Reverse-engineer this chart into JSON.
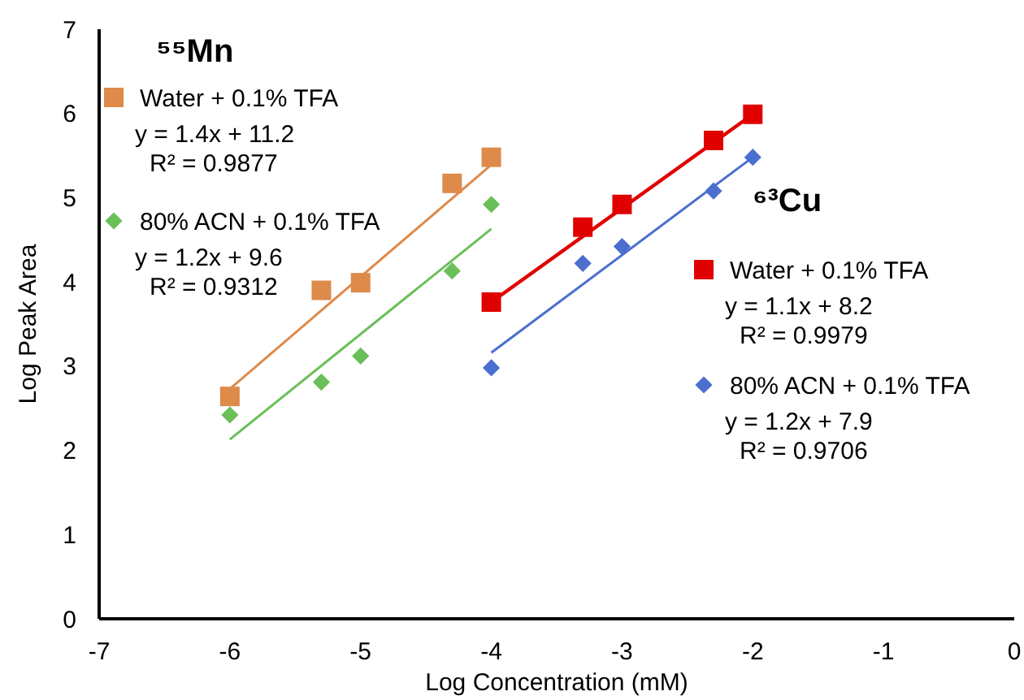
{
  "chart_data": {
    "type": "scatter",
    "xlabel": "Log Concentration (mM)",
    "ylabel": "Log Peak Area",
    "xlim": [
      -7,
      0
    ],
    "ylim": [
      0,
      7
    ],
    "xticks": [
      -7,
      -6,
      -5,
      -4,
      -3,
      -2,
      -1,
      0
    ],
    "yticks": [
      0,
      1,
      2,
      3,
      4,
      5,
      6,
      7
    ],
    "grid": false,
    "legend": "top left",
    "series": [
      {
        "name": "Water + 0.1% TFA",
        "type": "scatter",
        "marker": "square",
        "color": "#dd8a4a",
        "x": [
          -6,
          -5.3,
          -5,
          -4.3,
          -4
        ],
        "values": [
          2.64,
          3.9,
          3.99,
          5.17,
          5.48
        ]
      },
      {
        "name": "80% ACN + 0.1% TFA",
        "type": "scatter",
        "marker": "diamond",
        "color": "#6abf59",
        "x": [
          -6,
          -5.3,
          -5,
          -4.3,
          -4
        ],
        "values": [
          2.42,
          2.81,
          3.12,
          4.13,
          4.92
        ]
      },
      {
        "name": "Water + 0.1% TFA",
        "type": "scatter",
        "marker": "square",
        "color": "#e00000",
        "x": [
          -4,
          -3.3,
          -3,
          -2.3,
          -2
        ],
        "values": [
          3.76,
          4.65,
          4.92,
          5.68,
          5.99
        ]
      },
      {
        "name": "80% ACN + 0.1% TFA",
        "type": "scatter",
        "marker": "diamond",
        "color": "#4a6fcf",
        "x": [
          -4,
          -3.3,
          -3,
          -2.3,
          -2
        ],
        "values": [
          2.98,
          4.22,
          4.42,
          5.08,
          5.48
        ]
      },
      {
        "type": "line",
        "marker": "none",
        "color": "#dd8a4a",
        "x": [
          -6,
          -4
        ],
        "values": [
          2.73,
          5.39
        ]
      },
      {
        "type": "line",
        "marker": "none",
        "color": "#6abf59",
        "x": [
          -6,
          -4
        ],
        "values": [
          2.13,
          4.63
        ]
      },
      {
        "type": "line",
        "marker": "none",
        "color": "#e00000",
        "x": [
          -4,
          -2
        ],
        "values": [
          3.76,
          5.99
        ]
      },
      {
        "type": "line",
        "marker": "none",
        "color": "#4a6fcf",
        "x": [
          -4,
          -2
        ],
        "values": [
          3.16,
          5.48
        ]
      }
    ],
    "annotations": [
      "⁵⁵Mn",
      "y = 1.4x + 11.2",
      "R² = 0.9877",
      "y = 1.2x + 9.6",
      "R² = 0.9312",
      "⁶³Cu",
      "y = 1.1x + 8.2",
      "R² = 0.9979",
      "y = 1.2x + 7.9",
      "R² = 0.9706"
    ]
  }
}
